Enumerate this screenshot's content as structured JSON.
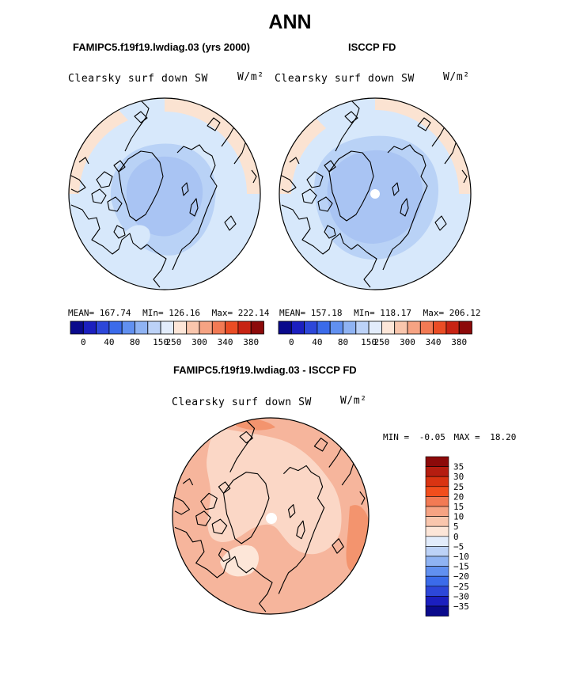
{
  "page": {
    "title": "ANN",
    "bottom_title": "FAMIPC5.f19f19.lwdiag.03 - ISCCP FD"
  },
  "colors": {
    "ocean_land_base": "#d7e8fb",
    "arctic_band": "#b9d2f6",
    "arctic_core": "#a9c4f3",
    "warm_fringe": "#fbe3d2",
    "diff_base": "#f6b59c",
    "diff_light": "#fbd7c6",
    "diff_strong": "#f3946e",
    "coastline": "#000000"
  },
  "chart_data": [
    {
      "type": "heatmap",
      "title": "FAMIPC5.f19f19.lwdiag.03 (yrs 2000)",
      "variable": "Clearsky surf down SW",
      "units": "W/m²",
      "projection": "north-polar stereographic",
      "stats": {
        "mean_label": "MEAN=",
        "mean": "167.74",
        "min_label": "MIn=",
        "min": "126.16",
        "max_label": "Max=",
        "max": "222.14"
      },
      "colorbar": {
        "colors": [
          "#0a0a8c",
          "#1b1fbf",
          "#2d47d9",
          "#3b6bea",
          "#6190f0",
          "#8fb3f3",
          "#bcd2f7",
          "#e2ecfb",
          "#fde6d8",
          "#f9c6ad",
          "#f6a383",
          "#f27a54",
          "#ea4d25",
          "#c72313",
          "#8c0a0a"
        ],
        "tick_labels": [
          "0",
          "40",
          "80",
          "150",
          "250",
          "300",
          "340",
          "380"
        ]
      }
    },
    {
      "type": "heatmap",
      "title": "ISCCP FD",
      "variable": "Clearsky surf down SW",
      "units": "W/m²",
      "projection": "north-polar stereographic",
      "stats": {
        "mean_label": "MEAN=",
        "mean": "157.18",
        "min_label": "MIn=",
        "min": "118.17",
        "max_label": "Max=",
        "max": "206.12"
      },
      "colorbar": {
        "colors": [
          "#0a0a8c",
          "#1b1fbf",
          "#2d47d9",
          "#3b6bea",
          "#6190f0",
          "#8fb3f3",
          "#bcd2f7",
          "#e2ecfb",
          "#fde6d8",
          "#f9c6ad",
          "#f6a383",
          "#f27a54",
          "#ea4d25",
          "#c72313",
          "#8c0a0a"
        ],
        "tick_labels": [
          "0",
          "40",
          "80",
          "150",
          "250",
          "300",
          "340",
          "380"
        ]
      }
    },
    {
      "type": "heatmap",
      "title": "FAMIPC5.f19f19.lwdiag.03 - ISCCP FD",
      "variable": "Clearsky surf down SW",
      "units": "W/m²",
      "projection": "north-polar stereographic",
      "stats": {
        "min_label": "MIN =",
        "min": "-0.05",
        "max_label": "MAX =",
        "max": "18.20"
      },
      "colorbar": {
        "orientation": "vertical",
        "colors": [
          "#8c0a0a",
          "#b51d10",
          "#d93412",
          "#f24e1d",
          "#f27a54",
          "#f6a383",
          "#f9c6ad",
          "#fde6d8",
          "#e2ecfb",
          "#bcd2f7",
          "#8fb3f3",
          "#6190f0",
          "#3b6bea",
          "#2d47d9",
          "#1b1fbf",
          "#0a0a8c"
        ],
        "tick_labels": [
          "35",
          "30",
          "25",
          "20",
          "15",
          "10",
          "5",
          "0",
          "−5",
          "−10",
          "−15",
          "−20",
          "−25",
          "−30",
          "−35"
        ]
      }
    }
  ]
}
